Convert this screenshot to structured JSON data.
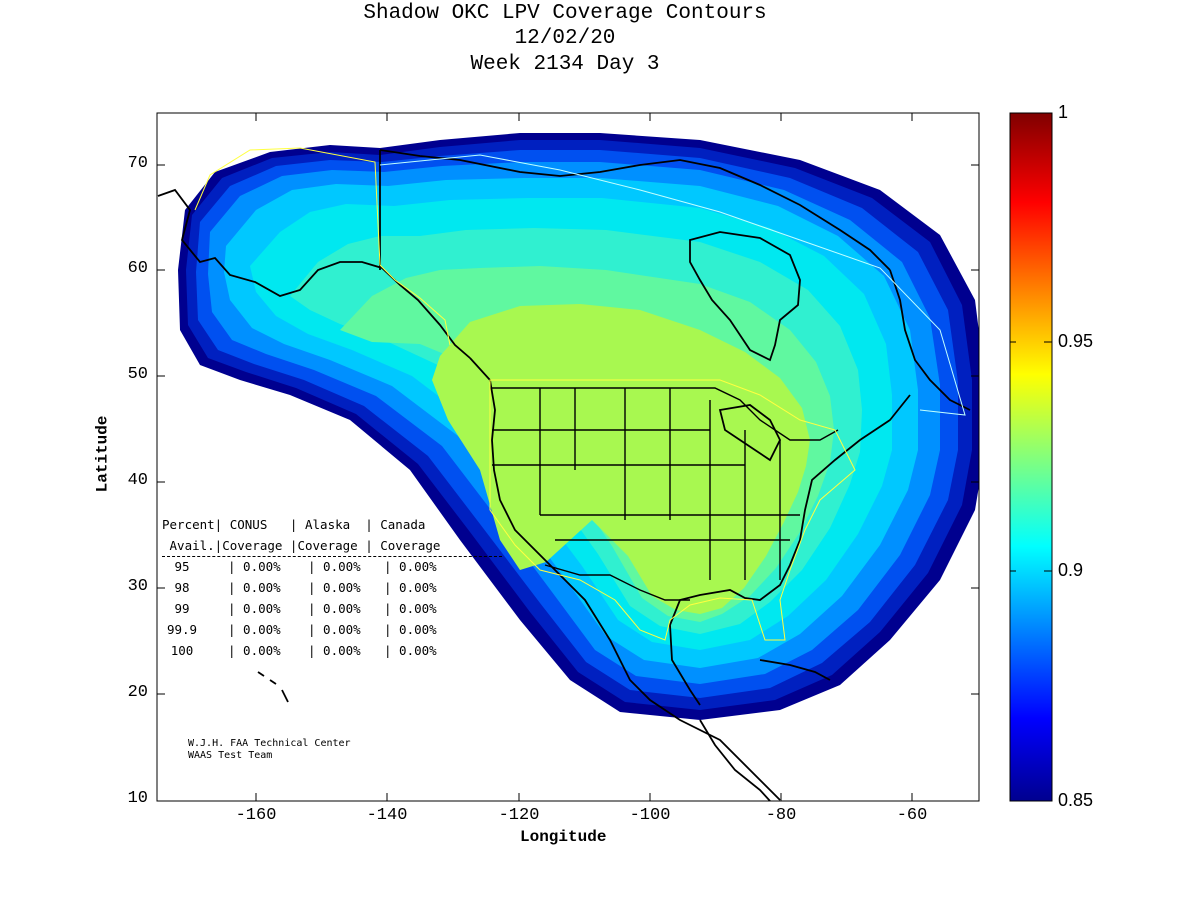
{
  "title": {
    "line1": "Shadow OKC LPV Coverage Contours",
    "line2": "12/02/20",
    "line3": "Week 2134 Day 3"
  },
  "axes": {
    "xlabel": "Longitude",
    "ylabel": "Latitude",
    "xticks": [
      "-160",
      "-140",
      "-120",
      "-100",
      "-80",
      "-60"
    ],
    "yticks": [
      "70",
      "60",
      "50",
      "40",
      "30",
      "20",
      "10"
    ],
    "xlim": [
      -175,
      -50
    ],
    "ylim": [
      10,
      75
    ]
  },
  "colorbar": {
    "ticks": [
      "1",
      "0.95",
      "0.9",
      "0.85"
    ],
    "range": [
      0.85,
      1
    ],
    "colormap": "jet"
  },
  "availability_table": {
    "header1": "Percent| CONUS   | Alaska  | Canada",
    "header2": " Avail.|Coverage |Coverage | Coverage",
    "rows": [
      {
        "pct": "95",
        "conus": "0.00%",
        "alaska": "0.00%",
        "canada": "0.00%"
      },
      {
        "pct": "98",
        "conus": "0.00%",
        "alaska": "0.00%",
        "canada": "0.00%"
      },
      {
        "pct": "99",
        "conus": "0.00%",
        "alaska": "0.00%",
        "canada": "0.00%"
      },
      {
        "pct": "99.9",
        "conus": "0.00%",
        "alaska": "0.00%",
        "canada": "0.00%"
      },
      {
        "pct": "100",
        "conus": "0.00%",
        "alaska": "0.00%",
        "canada": "0.00%"
      }
    ]
  },
  "credit": {
    "line1": "W.J.H. FAA Technical Center",
    "line2": "WAAS Test Team"
  },
  "colors": {
    "outer": "#00008f",
    "ring1": "#0020c0",
    "ring2": "#0050f0",
    "ring3": "#0090ff",
    "ring4": "#00c8ff",
    "ring5": "#00e8f0",
    "ring6": "#30f0d0",
    "ring7": "#60f8a0",
    "core": "#a8f850"
  }
}
